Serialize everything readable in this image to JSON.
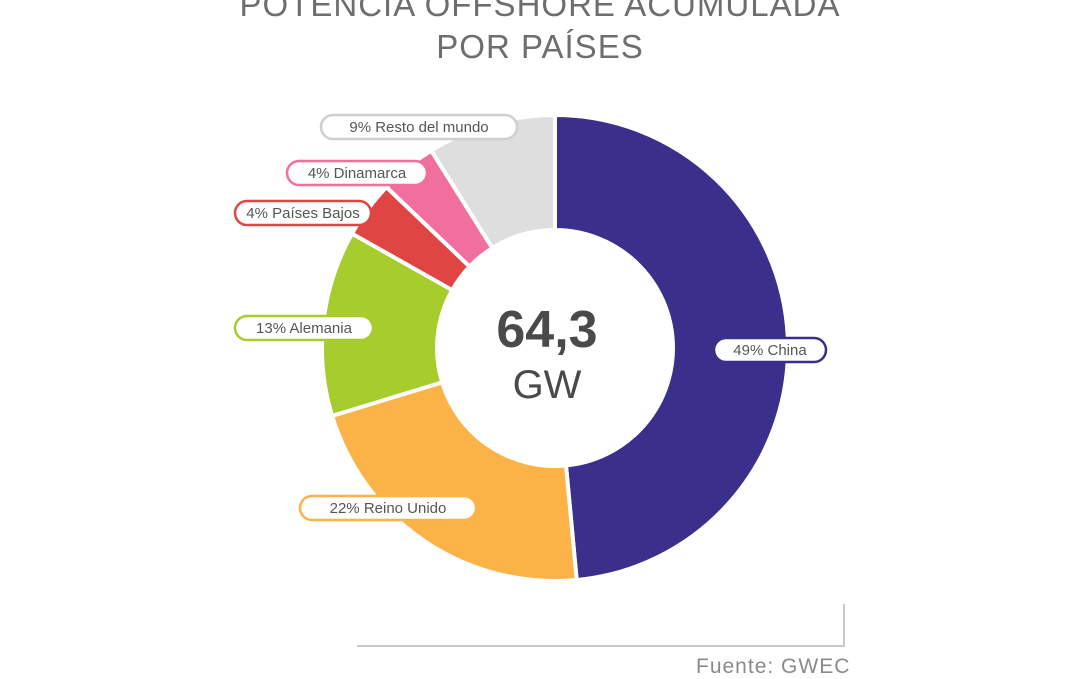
{
  "chart_data": {
    "type": "pie",
    "title_line1": "POTENCIA OFFSHORE ACUMULADA",
    "title_line2": "POR PAÍSES",
    "center_value": "64,3",
    "center_unit": "GW",
    "source": "Fuente: GWEC",
    "slices": [
      {
        "name": "China",
        "label": "49% China",
        "value": 49,
        "color": "#3b2f8c"
      },
      {
        "name": "Reino Unido",
        "label": "22% Reino Unido",
        "value": 22,
        "color": "#fbb347"
      },
      {
        "name": "Alemania",
        "label": "13% Alemania",
        "value": 13,
        "color": "#a6cc2e"
      },
      {
        "name": "Países Bajos",
        "label": "4% Países Bajos",
        "value": 4,
        "color": "#df4543"
      },
      {
        "name": "Dinamarca",
        "label": "4% Dinamarca",
        "value": 4,
        "color": "#f06f9d"
      },
      {
        "name": "Resto del mundo",
        "label": "9% Resto del mundo",
        "value": 9,
        "color": "#dedede"
      }
    ]
  }
}
